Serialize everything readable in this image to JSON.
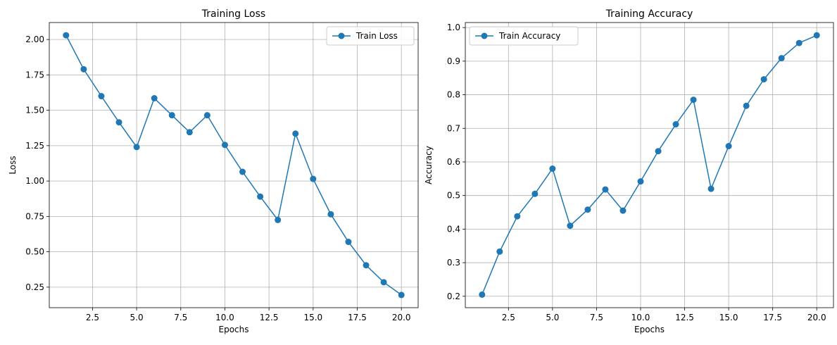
{
  "chart_data": [
    {
      "type": "line",
      "title": "Training Loss",
      "xlabel": "Epochs",
      "ylabel": "Loss",
      "xlim": [
        0.05,
        20.95
      ],
      "ylim": [
        0.105,
        2.12
      ],
      "xticks": [
        2.5,
        5.0,
        7.5,
        10.0,
        12.5,
        15.0,
        17.5,
        20.0
      ],
      "xtick_labels": [
        "2.5",
        "5.0",
        "7.5",
        "10.0",
        "12.5",
        "15.0",
        "17.5",
        "20.0"
      ],
      "yticks": [
        0.25,
        0.5,
        0.75,
        1.0,
        1.25,
        1.5,
        1.75,
        2.0
      ],
      "ytick_labels": [
        "0.25",
        "0.50",
        "0.75",
        "1.00",
        "1.25",
        "1.50",
        "1.75",
        "2.00"
      ],
      "grid": true,
      "legend_position": "top-right",
      "series": [
        {
          "name": "Train Loss",
          "color": "#1f77b4",
          "marker": "circle",
          "x": [
            1,
            2,
            3,
            4,
            5,
            6,
            7,
            8,
            9,
            10,
            11,
            12,
            13,
            14,
            15,
            16,
            17,
            18,
            19,
            20
          ],
          "y": [
            2.03,
            1.79,
            1.6,
            1.415,
            1.24,
            1.585,
            1.465,
            1.345,
            1.465,
            1.255,
            1.065,
            0.89,
            0.725,
            1.335,
            1.015,
            0.765,
            0.57,
            0.405,
            0.285,
            0.195
          ]
        }
      ]
    },
    {
      "type": "line",
      "title": "Training Accuracy",
      "xlabel": "Epochs",
      "ylabel": "Accuracy",
      "xlim": [
        0.05,
        20.95
      ],
      "ylim": [
        0.166,
        1.015
      ],
      "xticks": [
        2.5,
        5.0,
        7.5,
        10.0,
        12.5,
        15.0,
        17.5,
        20.0
      ],
      "xtick_labels": [
        "2.5",
        "5.0",
        "7.5",
        "10.0",
        "12.5",
        "15.0",
        "17.5",
        "20.0"
      ],
      "yticks": [
        0.2,
        0.3,
        0.4,
        0.5,
        0.6,
        0.7,
        0.8,
        0.9,
        1.0
      ],
      "ytick_labels": [
        "0.2",
        "0.3",
        "0.4",
        "0.5",
        "0.6",
        "0.7",
        "0.8",
        "0.9",
        "1.0"
      ],
      "grid": true,
      "legend_position": "top-left",
      "series": [
        {
          "name": "Train Accuracy",
          "color": "#1f77b4",
          "marker": "circle",
          "x": [
            1,
            2,
            3,
            4,
            5,
            6,
            7,
            8,
            9,
            10,
            11,
            12,
            13,
            14,
            15,
            16,
            17,
            18,
            19,
            20
          ],
          "y": [
            0.205,
            0.333,
            0.438,
            0.505,
            0.58,
            0.41,
            0.458,
            0.518,
            0.455,
            0.542,
            0.632,
            0.712,
            0.785,
            0.52,
            0.647,
            0.767,
            0.846,
            0.909,
            0.954,
            0.977
          ]
        }
      ]
    }
  ],
  "style": {
    "grid_color": "#b0b0b0",
    "axis_color": "#000000",
    "legend_border": "#cccccc"
  }
}
